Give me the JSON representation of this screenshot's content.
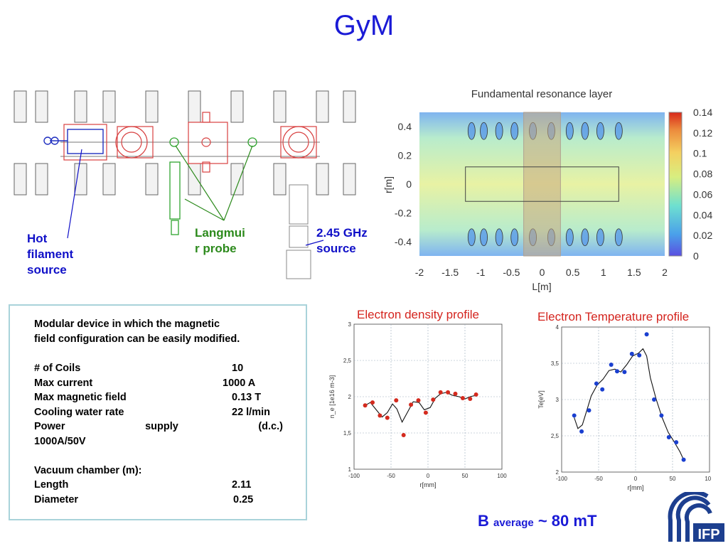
{
  "slide": {
    "title": "GyM",
    "labels": {
      "hot_filament": [
        "Hot",
        "filament",
        "source"
      ],
      "langmuir": [
        "Langmui",
        "r probe"
      ],
      "ghz": [
        "2.45 GHz",
        "source"
      ]
    },
    "info": {
      "intro": [
        "Modular device in which the magnetic",
        "field configuration can be easily modified."
      ],
      "rows": [
        {
          "name": "# of Coils",
          "value": "10"
        },
        {
          "name": "Max current",
          "value": "1000 A"
        },
        {
          "name": "Max magnetic field",
          "value": "0.13 T"
        },
        {
          "name": "Cooling  water rate",
          "value": "22 l/min"
        }
      ],
      "power_a": "Power",
      "power_b": "supply",
      "power_c": "(d.c.)",
      "power_line2": "1000A/50V",
      "vacuum_title": "Vacuum chamber  (m):",
      "vacuum_rows": [
        {
          "name": "Length",
          "value": "2.11"
        },
        {
          "name": "Diameter",
          "value": "0.25"
        }
      ]
    },
    "b_average": {
      "b": "B",
      "sub": "average",
      "rest": " ~ 80 mT"
    }
  },
  "chart_data": [
    {
      "type": "heatmap",
      "title": "Fundamental resonance layer",
      "xlabel": "L[m]",
      "ylabel": "r[m]",
      "xlim": [
        -2,
        2
      ],
      "ylim": [
        -0.5,
        0.5
      ],
      "x_ticks": [
        "-2",
        "-1.5",
        "-1",
        "-0.5",
        "0",
        "0.5",
        "1",
        "1.5",
        "2"
      ],
      "y_ticks": [
        "0.4",
        "0.2",
        "0",
        "-0.2",
        "-0.4"
      ],
      "colorbar_ticks": [
        "0.14",
        "0.12",
        "0.1",
        "0.08",
        "0.06",
        "0.04",
        "0.02",
        "0"
      ],
      "colorbar_range": [
        0,
        0.14
      ],
      "resonance_band_x": [
        -0.3,
        0.3
      ],
      "chamber_box": {
        "x": [
          -1.25,
          1.25
        ],
        "y": [
          -0.12,
          0.12
        ]
      },
      "coil_positions_x": [
        -1.15,
        -0.95,
        -0.7,
        -0.45,
        -0.15,
        0.15,
        0.45,
        0.7,
        0.95,
        1.25
      ]
    },
    {
      "type": "scatter",
      "title": "Electron density profile",
      "xlabel": "r[mm]",
      "ylabel": "n_e [1e16 m-3]",
      "xlim": [
        -100,
        100
      ],
      "ylim": [
        1,
        3
      ],
      "x_ticks": [
        "-100",
        "-50",
        "0",
        "50",
        "100"
      ],
      "y_ticks": [
        "3",
        "2,5",
        "2",
        "1,5",
        "1"
      ],
      "points": {
        "x": [
          -85,
          -75,
          -65,
          -55,
          -43,
          -33,
          -23,
          -13,
          -3,
          7,
          17,
          27,
          37,
          47,
          57,
          65
        ],
        "y": [
          1.88,
          1.92,
          1.74,
          1.71,
          1.95,
          1.47,
          1.89,
          1.95,
          1.78,
          1.96,
          2.06,
          2.06,
          2.04,
          1.98,
          1.97,
          2.03
        ]
      },
      "fit": {
        "x": [
          -85,
          -78,
          -70,
          -62,
          -55,
          -48,
          -42,
          -35,
          -28,
          -20,
          -12,
          -5,
          3,
          10,
          17,
          25,
          33,
          42,
          50,
          57,
          65
        ],
        "y": [
          1.88,
          1.92,
          1.82,
          1.72,
          1.78,
          1.9,
          1.83,
          1.65,
          1.78,
          1.93,
          1.92,
          1.82,
          1.85,
          1.98,
          2.04,
          2.06,
          2.02,
          2.0,
          1.97,
          2.0,
          2.02
        ]
      }
    },
    {
      "type": "scatter",
      "title": "Electron Temperature profile",
      "xlabel": "r[mm]",
      "ylabel": "Te[eV]",
      "xlim": [
        -100,
        100
      ],
      "ylim": [
        2,
        4
      ],
      "x_ticks": [
        "-100",
        "-50",
        "0",
        "50",
        "100"
      ],
      "y_ticks": [
        "4",
        "3,5",
        "3",
        "2,5",
        "2"
      ],
      "points": {
        "x": [
          -83,
          -73,
          -63,
          -53,
          -45,
          -33,
          -25,
          -15,
          -5,
          5,
          15,
          25,
          35,
          45,
          55,
          65
        ],
        "y": [
          2.78,
          2.56,
          2.85,
          3.22,
          3.14,
          3.48,
          3.39,
          3.38,
          3.63,
          3.61,
          3.9,
          3.0,
          2.78,
          2.48,
          2.41,
          2.17
        ]
      },
      "fit": {
        "x": [
          -83,
          -78,
          -72,
          -66,
          -60,
          -52,
          -44,
          -36,
          -28,
          -20,
          -12,
          -4,
          4,
          10,
          15,
          20,
          28,
          36,
          44,
          52,
          60,
          65
        ],
        "y": [
          2.75,
          2.6,
          2.65,
          2.85,
          3.05,
          3.2,
          3.28,
          3.4,
          3.42,
          3.38,
          3.48,
          3.6,
          3.64,
          3.7,
          3.6,
          3.3,
          3.0,
          2.75,
          2.55,
          2.42,
          2.28,
          2.17
        ]
      }
    }
  ]
}
